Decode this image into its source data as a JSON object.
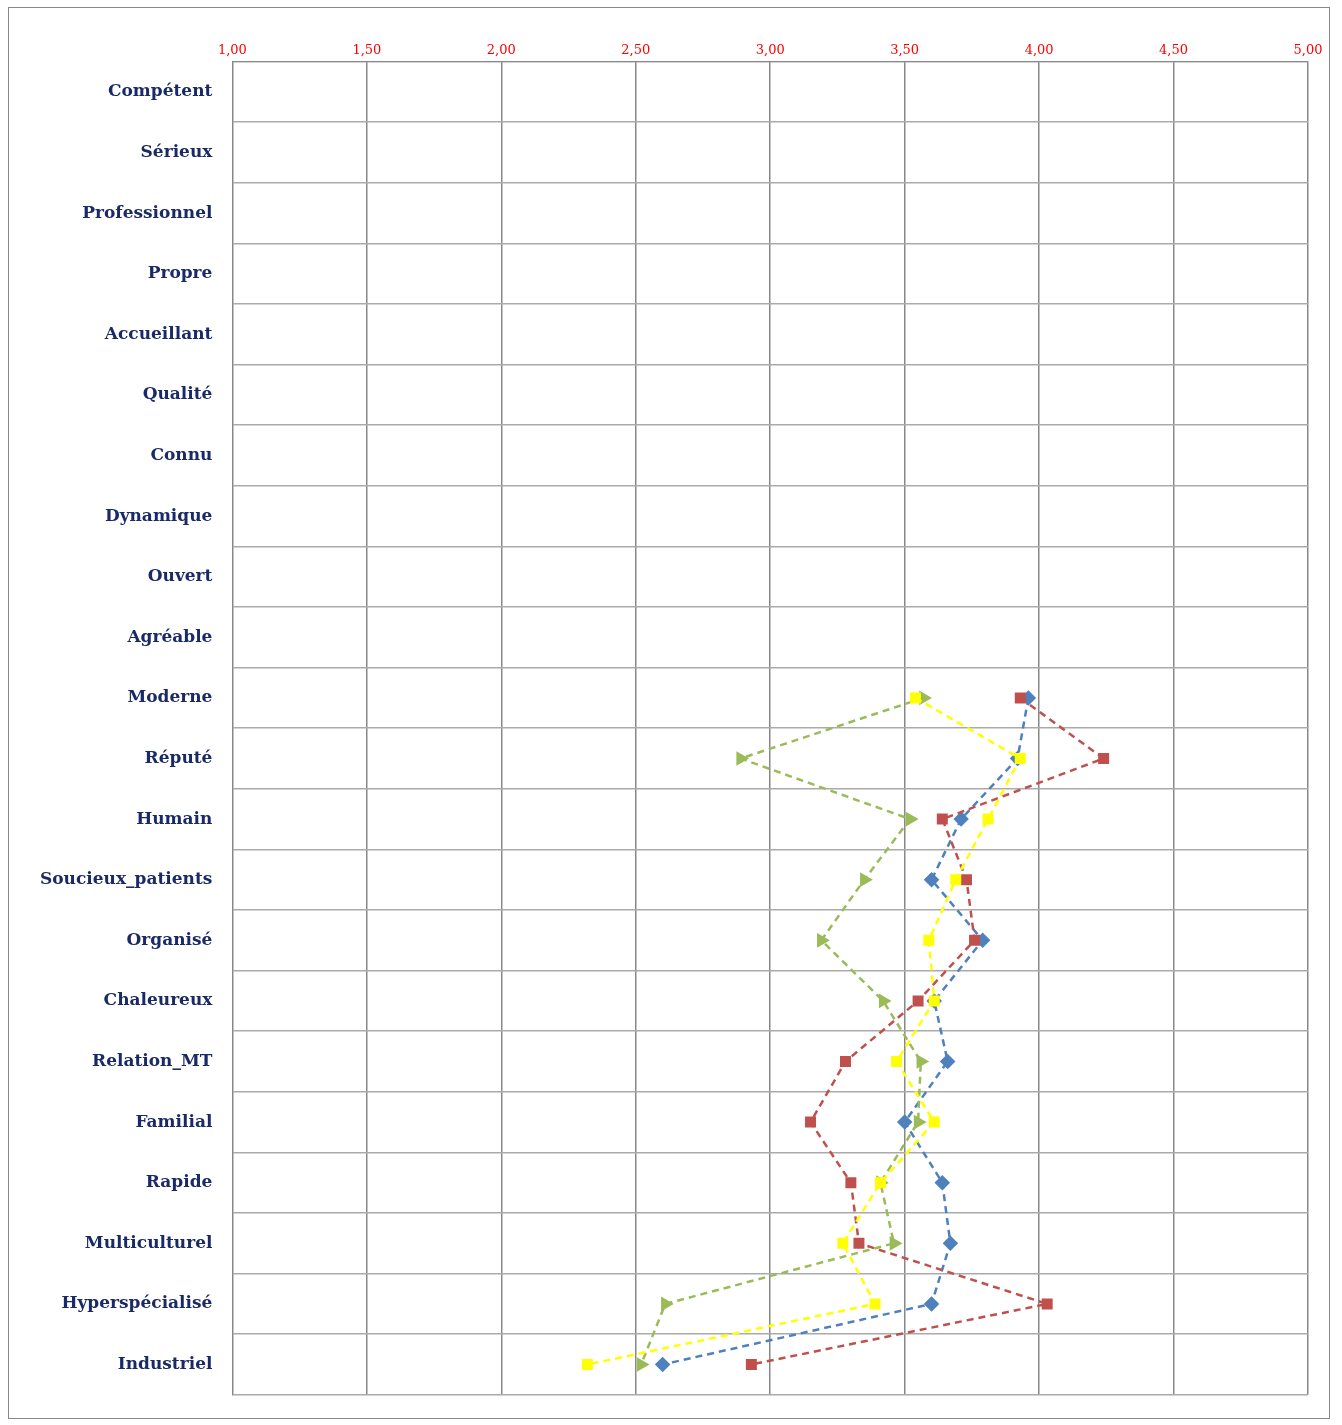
{
  "chart_data": {
    "type": "line",
    "orientation": "horizontal",
    "categories": [
      "Compétent",
      "Sérieux",
      "Professionnel",
      "Propre",
      "Accueillant",
      "Qualité",
      "Connu",
      "Dynamique",
      "Ouvert",
      "Agréable",
      "Moderne",
      "Réputé",
      "Humain",
      "Soucieux_patients",
      "Organisé",
      "Chaleureux",
      "Relation_MT",
      "Familial",
      "Rapide",
      "Multiculturel",
      "Hyperspécialisé",
      "Industriel"
    ],
    "series": [
      {
        "color": "#4f81bd",
        "marker": "diamond",
        "values": [
          null,
          null,
          null,
          null,
          null,
          null,
          null,
          null,
          null,
          null,
          3.96,
          3.92,
          3.71,
          3.6,
          3.79,
          3.61,
          3.66,
          3.5,
          3.64,
          3.67,
          3.6,
          2.6
        ]
      },
      {
        "color": "#c0504d",
        "marker": "square",
        "values": [
          null,
          null,
          null,
          null,
          null,
          null,
          null,
          null,
          null,
          null,
          3.93,
          4.24,
          3.64,
          3.73,
          3.76,
          3.55,
          3.28,
          3.15,
          3.3,
          3.33,
          4.03,
          2.93
        ]
      },
      {
        "color": "#9bbb59",
        "marker": "triangle",
        "values": [
          null,
          null,
          null,
          null,
          null,
          null,
          null,
          null,
          null,
          null,
          3.57,
          2.89,
          3.52,
          3.35,
          3.19,
          3.42,
          3.56,
          3.55,
          3.41,
          3.46,
          2.61,
          2.52
        ]
      },
      {
        "color": "#ffff00",
        "marker": "square",
        "values": [
          null,
          null,
          null,
          null,
          null,
          null,
          null,
          null,
          null,
          null,
          3.54,
          3.93,
          3.81,
          3.69,
          3.59,
          3.61,
          3.47,
          3.61,
          3.41,
          3.27,
          3.39,
          2.32
        ]
      }
    ],
    "xlim": [
      1,
      5
    ],
    "xticks": [
      {
        "value": 1,
        "label": "1,00"
      },
      {
        "value": 1.5,
        "label": "1,50"
      },
      {
        "value": 2,
        "label": "2,00"
      },
      {
        "value": 2.5,
        "label": "2,50"
      },
      {
        "value": 3,
        "label": "3,00"
      },
      {
        "value": 3.5,
        "label": "3,50"
      },
      {
        "value": 4,
        "label": "4,00"
      },
      {
        "value": 4.5,
        "label": "4,50"
      },
      {
        "value": 5,
        "label": "5,00"
      }
    ],
    "grid": true,
    "legend": false,
    "line_style": "dashed"
  }
}
